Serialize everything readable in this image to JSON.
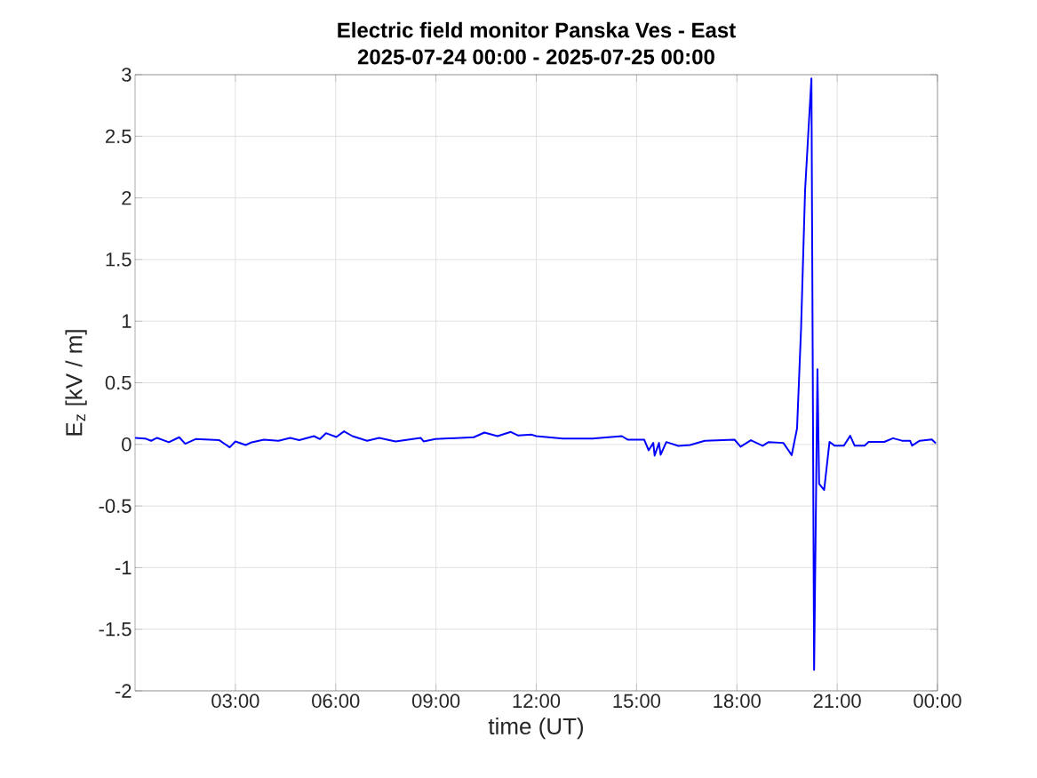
{
  "chart_data": {
    "type": "line",
    "title": "Electric field monitor Panska Ves - East",
    "subtitle": "2025-07-24 00:00 - 2025-07-25 00:00",
    "xlabel": "time (UT)",
    "ylabel": "E$_{z}$ [kV / m]",
    "xlim": [
      0,
      24
    ],
    "ylim": [
      -2,
      3
    ],
    "xticks": [
      {
        "value": 3,
        "label": "03:00"
      },
      {
        "value": 6,
        "label": "06:00"
      },
      {
        "value": 9,
        "label": "09:00"
      },
      {
        "value": 12,
        "label": "12:00"
      },
      {
        "value": 15,
        "label": "15:00"
      },
      {
        "value": 18,
        "label": "18:00"
      },
      {
        "value": 21,
        "label": "21:00"
      },
      {
        "value": 24,
        "label": "00:00"
      }
    ],
    "yticks": [
      -2,
      -1.5,
      -1,
      -0.5,
      0,
      0.5,
      1,
      1.5,
      2,
      2.5,
      3
    ],
    "grid": true,
    "marker": "none",
    "line_style": "solid",
    "series": [
      {
        "color": "#0000ff",
        "x": [
          0.0,
          0.3,
          0.48,
          0.66,
          1.01,
          1.32,
          1.5,
          1.81,
          2.52,
          2.83,
          3.0,
          3.31,
          3.49,
          3.85,
          4.29,
          4.64,
          4.91,
          5.35,
          5.53,
          5.71,
          6.02,
          6.25,
          6.5,
          6.94,
          7.3,
          7.79,
          8.54,
          8.63,
          8.98,
          10.13,
          10.45,
          10.84,
          11.24,
          11.46,
          11.86,
          12.0,
          12.79,
          13.68,
          14.56,
          14.74,
          15.23,
          15.36,
          15.5,
          15.54,
          15.67,
          15.72,
          15.89,
          16.25,
          16.6,
          17.04,
          17.93,
          18.11,
          18.42,
          18.77,
          18.95,
          19.39,
          19.64,
          19.8,
          19.92,
          20.04,
          20.16,
          20.23,
          20.27,
          20.31,
          20.41,
          20.46,
          20.61,
          20.77,
          20.92,
          21.2,
          21.39,
          21.52,
          21.82,
          21.94,
          22.41,
          22.67,
          22.94,
          23.18,
          23.24,
          23.47,
          23.83,
          23.95
        ],
        "values": [
          0.053,
          0.048,
          0.029,
          0.053,
          0.017,
          0.058,
          0.005,
          0.043,
          0.034,
          -0.024,
          0.024,
          -0.005,
          0.017,
          0.038,
          0.029,
          0.053,
          0.034,
          0.067,
          0.043,
          0.091,
          0.06,
          0.106,
          0.067,
          0.029,
          0.053,
          0.024,
          0.053,
          0.024,
          0.043,
          0.058,
          0.096,
          0.067,
          0.101,
          0.072,
          0.079,
          0.067,
          0.048,
          0.048,
          0.067,
          0.038,
          0.038,
          -0.048,
          0.012,
          -0.091,
          0.012,
          -0.084,
          0.019,
          -0.012,
          -0.005,
          0.029,
          0.038,
          -0.019,
          0.034,
          -0.012,
          0.019,
          0.012,
          -0.087,
          0.13,
          0.94,
          2.06,
          2.64,
          2.97,
          0.58,
          -1.83,
          0.61,
          -0.32,
          -0.37,
          0.02,
          -0.01,
          -0.01,
          0.07,
          -0.01,
          -0.01,
          0.02,
          0.02,
          0.05,
          0.03,
          0.03,
          -0.01,
          0.03,
          0.04,
          0.01
        ]
      }
    ]
  }
}
